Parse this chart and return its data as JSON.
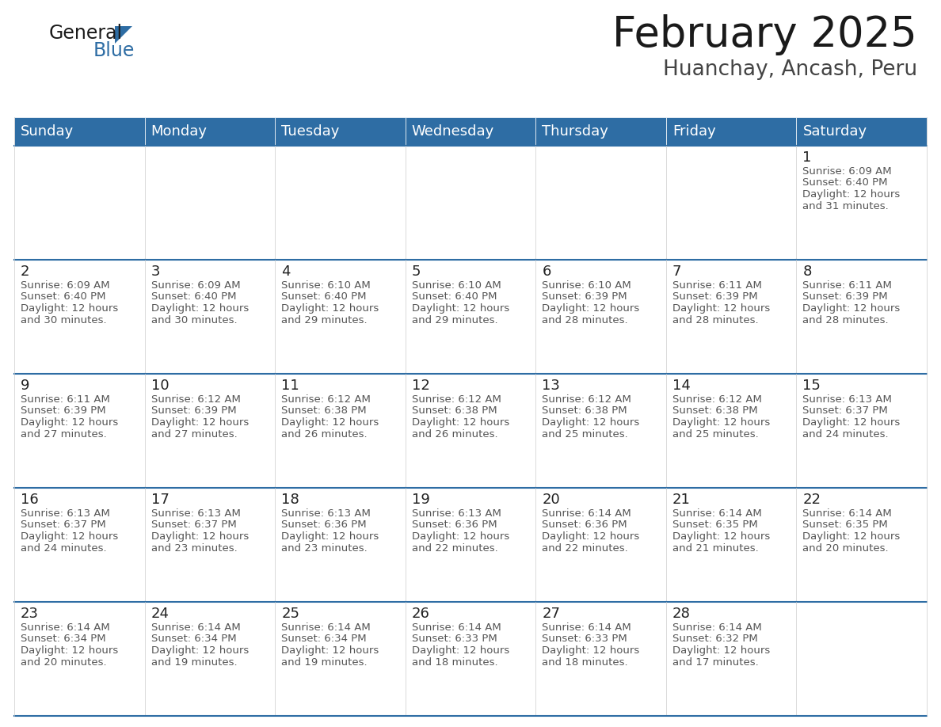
{
  "title": "February 2025",
  "subtitle": "Huanchay, Ancash, Peru",
  "header_color": "#2E6DA4",
  "header_text_color": "#FFFFFF",
  "cell_bg_color": "#F2F2F2",
  "border_color": "#2E6DA4",
  "day_names": [
    "Sunday",
    "Monday",
    "Tuesday",
    "Wednesday",
    "Thursday",
    "Friday",
    "Saturday"
  ],
  "calendar": [
    [
      null,
      null,
      null,
      null,
      null,
      null,
      {
        "day": 1,
        "sunrise": "6:09 AM",
        "sunset": "6:40 PM",
        "daylight": "12 hours and 31 minutes."
      }
    ],
    [
      {
        "day": 2,
        "sunrise": "6:09 AM",
        "sunset": "6:40 PM",
        "daylight": "12 hours and 30 minutes."
      },
      {
        "day": 3,
        "sunrise": "6:09 AM",
        "sunset": "6:40 PM",
        "daylight": "12 hours and 30 minutes."
      },
      {
        "day": 4,
        "sunrise": "6:10 AM",
        "sunset": "6:40 PM",
        "daylight": "12 hours and 29 minutes."
      },
      {
        "day": 5,
        "sunrise": "6:10 AM",
        "sunset": "6:40 PM",
        "daylight": "12 hours and 29 minutes."
      },
      {
        "day": 6,
        "sunrise": "6:10 AM",
        "sunset": "6:39 PM",
        "daylight": "12 hours and 28 minutes."
      },
      {
        "day": 7,
        "sunrise": "6:11 AM",
        "sunset": "6:39 PM",
        "daylight": "12 hours and 28 minutes."
      },
      {
        "day": 8,
        "sunrise": "6:11 AM",
        "sunset": "6:39 PM",
        "daylight": "12 hours and 28 minutes."
      }
    ],
    [
      {
        "day": 9,
        "sunrise": "6:11 AM",
        "sunset": "6:39 PM",
        "daylight": "12 hours and 27 minutes."
      },
      {
        "day": 10,
        "sunrise": "6:12 AM",
        "sunset": "6:39 PM",
        "daylight": "12 hours and 27 minutes."
      },
      {
        "day": 11,
        "sunrise": "6:12 AM",
        "sunset": "6:38 PM",
        "daylight": "12 hours and 26 minutes."
      },
      {
        "day": 12,
        "sunrise": "6:12 AM",
        "sunset": "6:38 PM",
        "daylight": "12 hours and 26 minutes."
      },
      {
        "day": 13,
        "sunrise": "6:12 AM",
        "sunset": "6:38 PM",
        "daylight": "12 hours and 25 minutes."
      },
      {
        "day": 14,
        "sunrise": "6:12 AM",
        "sunset": "6:38 PM",
        "daylight": "12 hours and 25 minutes."
      },
      {
        "day": 15,
        "sunrise": "6:13 AM",
        "sunset": "6:37 PM",
        "daylight": "12 hours and 24 minutes."
      }
    ],
    [
      {
        "day": 16,
        "sunrise": "6:13 AM",
        "sunset": "6:37 PM",
        "daylight": "12 hours and 24 minutes."
      },
      {
        "day": 17,
        "sunrise": "6:13 AM",
        "sunset": "6:37 PM",
        "daylight": "12 hours and 23 minutes."
      },
      {
        "day": 18,
        "sunrise": "6:13 AM",
        "sunset": "6:36 PM",
        "daylight": "12 hours and 23 minutes."
      },
      {
        "day": 19,
        "sunrise": "6:13 AM",
        "sunset": "6:36 PM",
        "daylight": "12 hours and 22 minutes."
      },
      {
        "day": 20,
        "sunrise": "6:14 AM",
        "sunset": "6:36 PM",
        "daylight": "12 hours and 22 minutes."
      },
      {
        "day": 21,
        "sunrise": "6:14 AM",
        "sunset": "6:35 PM",
        "daylight": "12 hours and 21 minutes."
      },
      {
        "day": 22,
        "sunrise": "6:14 AM",
        "sunset": "6:35 PM",
        "daylight": "12 hours and 20 minutes."
      }
    ],
    [
      {
        "day": 23,
        "sunrise": "6:14 AM",
        "sunset": "6:34 PM",
        "daylight": "12 hours and 20 minutes."
      },
      {
        "day": 24,
        "sunrise": "6:14 AM",
        "sunset": "6:34 PM",
        "daylight": "12 hours and 19 minutes."
      },
      {
        "day": 25,
        "sunrise": "6:14 AM",
        "sunset": "6:34 PM",
        "daylight": "12 hours and 19 minutes."
      },
      {
        "day": 26,
        "sunrise": "6:14 AM",
        "sunset": "6:33 PM",
        "daylight": "12 hours and 18 minutes."
      },
      {
        "day": 27,
        "sunrise": "6:14 AM",
        "sunset": "6:33 PM",
        "daylight": "12 hours and 18 minutes."
      },
      {
        "day": 28,
        "sunrise": "6:14 AM",
        "sunset": "6:32 PM",
        "daylight": "12 hours and 17 minutes."
      },
      null
    ]
  ],
  "title_fontsize": 38,
  "subtitle_fontsize": 19,
  "header_fontsize": 13,
  "day_num_fontsize": 13,
  "cell_text_fontsize": 9.5,
  "logo_general_fontsize": 17,
  "logo_blue_fontsize": 17
}
